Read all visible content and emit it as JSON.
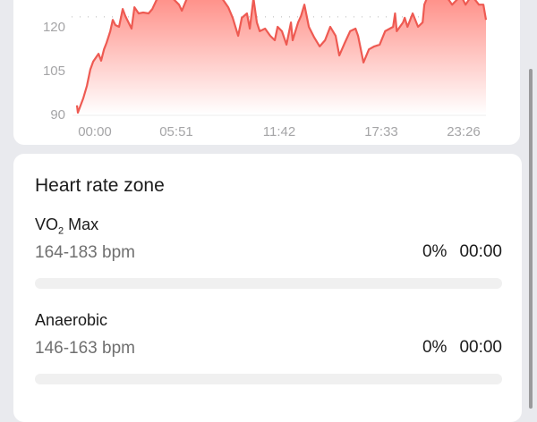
{
  "chart_data": {
    "type": "area",
    "title": "",
    "xlabel": "",
    "ylabel": "",
    "x_tick_labels": [
      "00:00",
      "05:51",
      "11:42",
      "17:33",
      "23:26"
    ],
    "y_tick_labels": [
      "90",
      "105",
      "120"
    ],
    "ylim_visible": [
      90,
      129
    ],
    "dotted_line_value": 123.4,
    "color": "#ee5a52",
    "fill_gradient": [
      "#ff8a82",
      "#ffffff"
    ],
    "points": [
      [
        "00:00",
        93.1
      ],
      [
        "00:03",
        90.6
      ],
      [
        "00:22",
        95.5
      ],
      [
        "00:35",
        99.8
      ],
      [
        "00:47",
        105.4
      ],
      [
        "00:57",
        108.1
      ],
      [
        "01:16",
        110.8
      ],
      [
        "01:25",
        108.4
      ],
      [
        "01:35",
        112.3
      ],
      [
        "01:44",
        114.5
      ],
      [
        "01:57",
        118.5
      ],
      [
        "02:06",
        122.4
      ],
      [
        "02:15",
        120.6
      ],
      [
        "02:28",
        120.0
      ],
      [
        "02:41",
        126.1
      ],
      [
        "02:50",
        123.7
      ],
      [
        "03:12",
        119.4
      ],
      [
        "03:22",
        126.7
      ],
      [
        "03:37",
        124.6
      ],
      [
        "03:53",
        124.9
      ],
      [
        "04:12",
        124.6
      ],
      [
        "04:25",
        126.1
      ],
      [
        "04:40",
        129.2
      ],
      [
        "05:12",
        132.2
      ],
      [
        "05:59",
        127.6
      ],
      [
        "06:09",
        125.5
      ],
      [
        "06:31",
        130.7
      ],
      [
        "07:34",
        132.2
      ],
      [
        "08:30",
        129.8
      ],
      [
        "08:52",
        126.7
      ],
      [
        "09:08",
        123.1
      ],
      [
        "09:27",
        116.9
      ],
      [
        "09:40",
        123.1
      ],
      [
        "09:58",
        124.6
      ],
      [
        "10:08",
        119.4
      ],
      [
        "10:21",
        129.8
      ],
      [
        "10:33",
        121.5
      ],
      [
        "10:43",
        118.5
      ],
      [
        "11:02",
        119.4
      ],
      [
        "11:20",
        116.9
      ],
      [
        "11:36",
        115.4
      ],
      [
        "11:46",
        120.0
      ],
      [
        "12:01",
        118.5
      ],
      [
        "12:17",
        113.9
      ],
      [
        "12:33",
        121.5
      ],
      [
        "12:39",
        115.4
      ],
      [
        "12:58",
        121.5
      ],
      [
        "13:08",
        123.7
      ],
      [
        "13:20",
        127.6
      ],
      [
        "13:36",
        120.0
      ],
      [
        "13:55",
        116.3
      ],
      [
        "14:14",
        113.3
      ],
      [
        "14:33",
        115.4
      ],
      [
        "14:51",
        120.0
      ],
      [
        "15:10",
        116.9
      ],
      [
        "15:23",
        110.2
      ],
      [
        "15:42",
        114.5
      ],
      [
        "16:01",
        118.5
      ],
      [
        "16:20",
        119.4
      ],
      [
        "16:29",
        116.9
      ],
      [
        "16:48",
        107.8
      ],
      [
        "17:07",
        112.3
      ],
      [
        "17:26",
        113.3
      ],
      [
        "17:45",
        113.9
      ],
      [
        "18:04",
        118.5
      ],
      [
        "18:32",
        120.0
      ],
      [
        "18:39",
        124.6
      ],
      [
        "18:45",
        118.5
      ],
      [
        "19:07",
        121.5
      ],
      [
        "19:13",
        123.1
      ],
      [
        "19:23",
        120.0
      ],
      [
        "19:41",
        124.6
      ],
      [
        "20:00",
        120.0
      ],
      [
        "20:16",
        121.5
      ],
      [
        "20:22",
        127.6
      ],
      [
        "20:35",
        130.7
      ],
      [
        "21:44",
        129.8
      ],
      [
        "22:00",
        127.6
      ],
      [
        "22:31",
        130.7
      ],
      [
        "22:47",
        127.6
      ],
      [
        "23:09",
        130.7
      ],
      [
        "23:34",
        127.6
      ],
      [
        "23:50",
        127.6
      ],
      [
        "23:59",
        122.4
      ]
    ]
  },
  "zones": {
    "title": "Heart rate zone",
    "items": [
      {
        "name_main": "VO",
        "name_sub": "2",
        "name_rest": " Max",
        "range": "164-183 bpm",
        "percent": "0%",
        "duration": "00:00",
        "fill": 0
      },
      {
        "name_main": "Anaerobic",
        "name_sub": "",
        "name_rest": "",
        "range": "146-163 bpm",
        "percent": "0%",
        "duration": "00:00",
        "fill": 0
      }
    ]
  }
}
